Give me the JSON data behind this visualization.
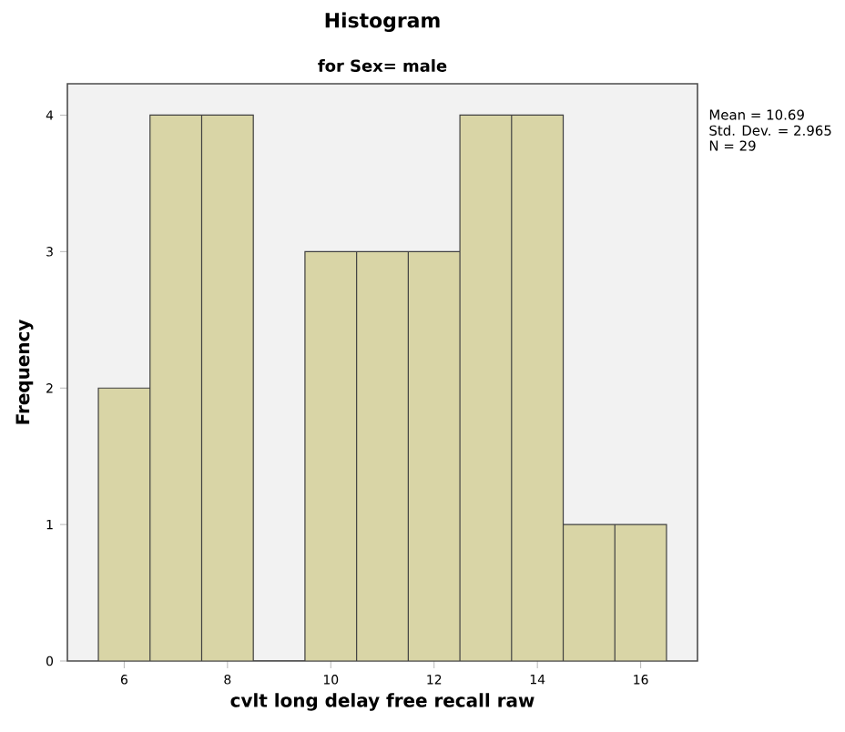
{
  "chart_data": {
    "type": "histogram",
    "title": "Histogram",
    "subtitle": "for Sex= male",
    "xlabel": "cvlt long delay free recall raw",
    "ylabel": "Frequency",
    "bins": [
      5.5,
      6.5,
      7.5,
      8.5,
      9.5,
      10.5,
      11.5,
      12.5,
      13.5,
      14.5,
      15.5,
      16.5
    ],
    "values": [
      2,
      4,
      4,
      0,
      3,
      3,
      3,
      4,
      4,
      1,
      1
    ],
    "color": "#d9d5a6",
    "xlim": [
      4.9,
      17.1
    ],
    "ylim": [
      0,
      4.23
    ],
    "xticks": [
      6,
      8,
      10,
      12,
      14,
      16
    ],
    "yticks": [
      0,
      1,
      2,
      3,
      4
    ],
    "annotations": [
      "Mean = 10.69",
      "Std. Dev. = 2.965",
      "N = 29"
    ]
  }
}
